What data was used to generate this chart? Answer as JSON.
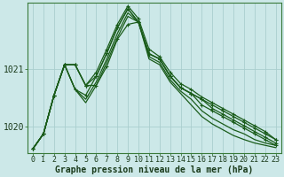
{
  "title": "Graphe pression niveau de la mer (hPa)",
  "background_color": "#cce8e8",
  "grid_color": "#aacece",
  "line_color": "#1a5c1a",
  "xlim": [
    -0.5,
    23.5
  ],
  "ylim": [
    1019.55,
    1022.15
  ],
  "xticks": [
    0,
    1,
    2,
    3,
    4,
    5,
    6,
    7,
    8,
    9,
    10,
    11,
    12,
    13,
    14,
    15,
    16,
    17,
    18,
    19,
    20,
    21,
    22,
    23
  ],
  "yticks": [
    1020,
    1021
  ],
  "font_size_xlabel": 7,
  "font_size_ytick": 7,
  "font_size_xtick": 6,
  "series": [
    {
      "y": [
        1019.62,
        1019.88,
        1020.55,
        1021.08,
        1021.08,
        1020.72,
        1020.72,
        1021.05,
        1021.52,
        1021.78,
        1021.82,
        1021.27,
        1021.18,
        1020.88,
        1020.68,
        1020.58,
        1020.48,
        1020.38,
        1020.28,
        1020.18,
        1020.08,
        1019.98,
        1019.88,
        1019.78
      ],
      "marker": true,
      "lw": 0.9
    },
    {
      "y": [
        1019.62,
        1019.88,
        1020.55,
        1021.08,
        1021.08,
        1020.72,
        1020.88,
        1021.28,
        1021.72,
        1022.05,
        1021.82,
        1021.27,
        1021.18,
        1020.88,
        1020.68,
        1020.58,
        1020.48,
        1020.32,
        1020.22,
        1020.12,
        1020.02,
        1019.92,
        1019.82,
        1019.72
      ],
      "marker": true,
      "lw": 0.9
    },
    {
      "y": [
        1019.62,
        1019.88,
        1020.55,
        1021.08,
        1020.65,
        1020.55,
        1020.88,
        1021.28,
        1021.72,
        1022.05,
        1021.82,
        1021.27,
        1021.18,
        1020.88,
        1020.68,
        1020.58,
        1020.38,
        1020.28,
        1020.18,
        1020.08,
        1019.98,
        1019.88,
        1019.78,
        1019.68
      ],
      "marker": true,
      "lw": 0.9
    },
    {
      "y": [
        1019.62,
        1019.88,
        1020.55,
        1021.08,
        1020.65,
        1020.48,
        1020.78,
        1021.18,
        1021.62,
        1021.98,
        1021.82,
        1021.22,
        1021.12,
        1020.82,
        1020.62,
        1020.48,
        1020.28,
        1020.15,
        1020.05,
        1019.95,
        1019.88,
        1019.78,
        1019.72,
        1019.68
      ],
      "marker": false,
      "lw": 0.9
    },
    {
      "y": [
        1019.62,
        1019.88,
        1020.55,
        1021.08,
        1020.65,
        1020.42,
        1020.72,
        1021.12,
        1021.55,
        1021.92,
        1021.82,
        1021.18,
        1021.08,
        1020.78,
        1020.58,
        1020.38,
        1020.18,
        1020.05,
        1019.95,
        1019.85,
        1019.78,
        1019.72,
        1019.68,
        1019.64
      ],
      "marker": false,
      "lw": 0.9
    },
    {
      "y": [
        1019.62,
        1019.88,
        1020.55,
        1021.08,
        1021.08,
        1020.72,
        1020.95,
        1021.35,
        1021.78,
        1022.1,
        1021.88,
        1021.35,
        1021.22,
        1020.95,
        1020.75,
        1020.65,
        1020.52,
        1020.42,
        1020.32,
        1020.22,
        1020.12,
        1020.02,
        1019.92,
        1019.78
      ],
      "marker": true,
      "lw": 0.9
    }
  ]
}
